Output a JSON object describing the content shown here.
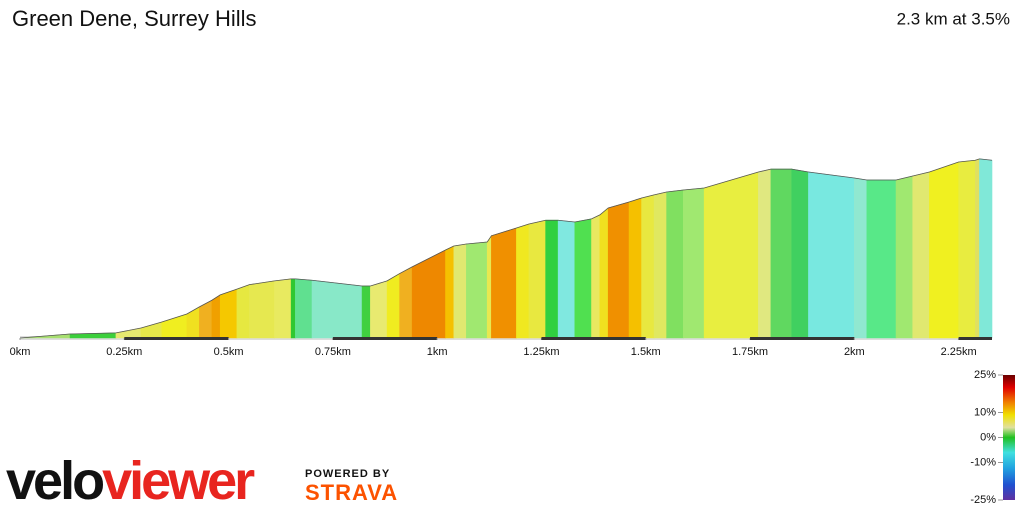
{
  "chart_data": {
    "type": "elevation",
    "title": "Green Dene, Surrey Hills",
    "subtitle": "2.3 km at 3.5%",
    "x": [
      0,
      0.12,
      0.23,
      0.29,
      0.34,
      0.4,
      0.43,
      0.46,
      0.48,
      0.52,
      0.55,
      0.61,
      0.65,
      0.66,
      0.7,
      0.82,
      0.84,
      0.88,
      0.91,
      0.94,
      1.02,
      1.04,
      1.07,
      1.12,
      1.13,
      1.19,
      1.22,
      1.26,
      1.29,
      1.33,
      1.37,
      1.39,
      1.41,
      1.46,
      1.49,
      1.52,
      1.55,
      1.59,
      1.64,
      1.77,
      1.8,
      1.85,
      1.89,
      2.0,
      2.03,
      2.1,
      2.14,
      2.18,
      2.25,
      2.29,
      2.3,
      2.33
    ],
    "values": [
      0,
      1.8,
      2.3,
      4.5,
      7.2,
      10.8,
      14,
      17,
      19.4,
      22,
      24,
      25.7,
      26.6,
      26.6,
      26,
      23.4,
      23.4,
      25.7,
      29,
      32,
      39.6,
      41.4,
      42.3,
      43.2,
      46,
      49.5,
      51.3,
      53,
      53,
      52.2,
      53.6,
      55.4,
      58.5,
      61.2,
      63,
      64.4,
      65.7,
      66.6,
      67.5,
      74.7,
      76,
      76,
      74.7,
      72,
      71.1,
      71.1,
      72.9,
      74.7,
      79.2,
      80,
      80.6,
      80
    ],
    "segment_colors": [
      "#a8e070",
      "#3bcf3b",
      "#e6e870",
      "#e6e84a",
      "#f0ee20",
      "#f0e020",
      "#f0b020",
      "#f0a000",
      "#f5c800",
      "#e6e840",
      "#e6e850",
      "#e8ea60",
      "#30c830",
      "#60e090",
      "#88e8c8",
      "#40d040",
      "#e8ea70",
      "#f0ec20",
      "#f0b020",
      "#ee8800",
      "#f5c000",
      "#e0e870",
      "#a0e870",
      "#e8e850",
      "#f09000",
      "#f0e820",
      "#e8e840",
      "#30d040",
      "#80e8e0",
      "#50e050",
      "#e8e860",
      "#f0e020",
      "#f09000",
      "#f5c000",
      "#e8e840",
      "#e0e860",
      "#80e060",
      "#a0e870",
      "#e8ee40",
      "#e0e880",
      "#60d860",
      "#40d060",
      "#78e8e0",
      "#90e8d0",
      "#58e888",
      "#a0e870",
      "#e0e870",
      "#f0f020",
      "#e8ec40",
      "#e0e060",
      "#80e8d8"
    ],
    "xlim": [
      0,
      2.33
    ],
    "ylim": [
      0,
      135
    ],
    "xticks": [
      {
        "value": 0,
        "label": "0km"
      },
      {
        "value": 0.25,
        "label": "0.25km"
      },
      {
        "value": 0.5,
        "label": "0.5km"
      },
      {
        "value": 0.75,
        "label": "0.75km"
      },
      {
        "value": 1,
        "label": "1km"
      },
      {
        "value": 1.25,
        "label": "1.25km"
      },
      {
        "value": 1.5,
        "label": "1.5km"
      },
      {
        "value": 1.75,
        "label": "1.75km"
      },
      {
        "value": 2,
        "label": "2km"
      },
      {
        "value": 2.25,
        "label": "2.25km"
      }
    ],
    "colorbar": {
      "clim": [
        -25,
        25
      ],
      "ticks": [
        {
          "value": 25,
          "label": "25%"
        },
        {
          "value": 10,
          "label": "10%"
        },
        {
          "value": 0,
          "label": "0%"
        },
        {
          "value": -10,
          "label": "-10%"
        },
        {
          "value": -25,
          "label": "-25%"
        }
      ]
    }
  },
  "logo": {
    "part1": "velo",
    "part2": "viewer",
    "powered": "POWERED BY",
    "strava": "STRAVA"
  }
}
